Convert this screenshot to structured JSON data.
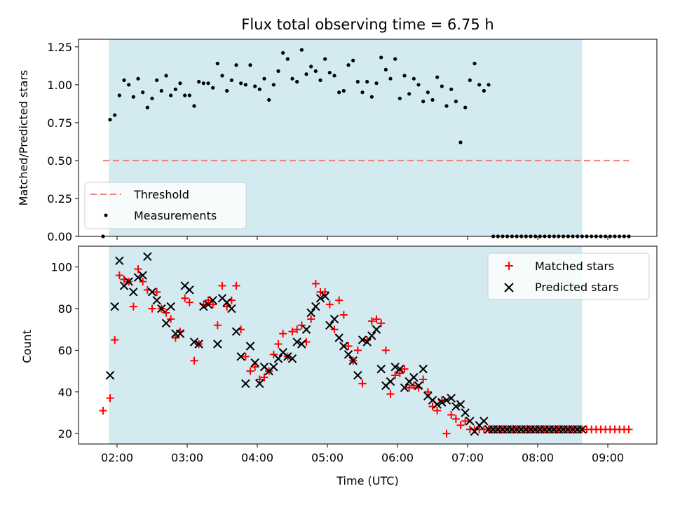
{
  "chart_data": [
    {
      "type": "scatter",
      "title": "Flux total observing time = 6.75 h",
      "xlabel": "",
      "ylabel": "Matched/Predicted stars",
      "xlim": [
        "01:27",
        "09:42"
      ],
      "ylim": [
        0,
        1.3
      ],
      "yticks": [
        "0.00",
        "0.25",
        "0.50",
        "0.75",
        "1.00",
        "1.25"
      ],
      "grid": false,
      "legend_position": "lower-left",
      "shaded_interval": {
        "start": "01:53",
        "end": "08:38",
        "color": "#d3eaf0"
      },
      "threshold": {
        "name": "Threshold",
        "value": 0.5,
        "x_start": "01:48",
        "x_end": "09:18",
        "color": "#f08080"
      },
      "series": [
        {
          "name": "Measurements",
          "marker": "dot",
          "color": "#000000",
          "x": [
            "01:48",
            "01:54",
            "01:58",
            "02:02",
            "02:06",
            "02:10",
            "02:14",
            "02:18",
            "02:22",
            "02:26",
            "02:30",
            "02:34",
            "02:38",
            "02:42",
            "02:46",
            "02:50",
            "02:54",
            "02:58",
            "03:02",
            "03:06",
            "03:10",
            "03:14",
            "03:18",
            "03:22",
            "03:26",
            "03:30",
            "03:34",
            "03:38",
            "03:42",
            "03:46",
            "03:50",
            "03:54",
            "03:58",
            "04:02",
            "04:06",
            "04:10",
            "04:14",
            "04:18",
            "04:22",
            "04:26",
            "04:30",
            "04:34",
            "04:38",
            "04:42",
            "04:46",
            "04:50",
            "04:54",
            "04:58",
            "05:02",
            "05:06",
            "05:10",
            "05:14",
            "05:18",
            "05:22",
            "05:26",
            "05:30",
            "05:34",
            "05:38",
            "05:42",
            "05:46",
            "05:50",
            "05:54",
            "05:58",
            "06:02",
            "06:06",
            "06:10",
            "06:14",
            "06:18",
            "06:22",
            "06:26",
            "06:30",
            "06:34",
            "06:38",
            "06:42",
            "06:46",
            "06:50",
            "06:54",
            "06:58",
            "07:02",
            "07:06",
            "07:10",
            "07:14",
            "07:18",
            "07:22",
            "07:26",
            "07:30",
            "07:34",
            "07:38",
            "07:42",
            "07:46",
            "07:50",
            "07:54",
            "07:58",
            "08:02",
            "08:06",
            "08:10",
            "08:14",
            "08:18",
            "08:22",
            "08:26",
            "08:30",
            "08:34",
            "08:38",
            "08:42",
            "08:46",
            "08:50",
            "08:54",
            "08:58",
            "09:02",
            "09:06",
            "09:10",
            "09:14",
            "09:18"
          ],
          "y": [
            0.0,
            0.77,
            0.8,
            0.93,
            1.03,
            1.0,
            0.92,
            1.04,
            0.95,
            0.85,
            0.91,
            1.03,
            0.96,
            1.06,
            0.93,
            0.97,
            1.01,
            0.93,
            0.93,
            0.86,
            1.02,
            1.01,
            1.01,
            0.98,
            1.14,
            1.06,
            0.96,
            1.03,
            1.13,
            1.01,
            1.0,
            1.13,
            0.99,
            0.97,
            1.04,
            0.9,
            1.0,
            1.09,
            1.21,
            1.17,
            1.04,
            1.02,
            1.23,
            1.07,
            1.12,
            1.09,
            1.03,
            1.17,
            1.08,
            1.06,
            0.95,
            0.96,
            1.13,
            1.16,
            1.02,
            0.95,
            1.02,
            0.92,
            1.01,
            1.18,
            1.1,
            1.04,
            1.17,
            0.91,
            1.06,
            0.94,
            1.04,
            1.0,
            0.89,
            0.95,
            0.9,
            1.05,
            0.99,
            0.86,
            0.97,
            0.89,
            0.62,
            0.85,
            1.03,
            1.14,
            1.0,
            0.96,
            1.0,
            0.0,
            0.0,
            0.0,
            0.0,
            0.0,
            0.0,
            0.0,
            0.0,
            0.0,
            0.0,
            0.0,
            0.0,
            0.0,
            0.0,
            0.0,
            0.0,
            0.0,
            0.0,
            0.0,
            0.0,
            0.0,
            0.0,
            0.0,
            0.0,
            0.0,
            0.0,
            0.0,
            0.0,
            0.0,
            0.0
          ]
        }
      ]
    },
    {
      "type": "scatter",
      "title": "",
      "xlabel": "Time (UTC)",
      "ylabel": "Count",
      "xlim": [
        "01:27",
        "09:42"
      ],
      "ylim": [
        15,
        110
      ],
      "yticks": [
        "20",
        "40",
        "60",
        "80",
        "100"
      ],
      "xticks": [
        "02:00",
        "03:00",
        "04:00",
        "05:00",
        "06:00",
        "07:00",
        "08:00",
        "09:00"
      ],
      "grid": false,
      "legend_position": "top-right",
      "shaded_interval": {
        "start": "01:53",
        "end": "08:38",
        "color": "#d3eaf0"
      },
      "series": [
        {
          "name": "Matched stars",
          "marker": "plus",
          "color": "#ff0000",
          "x": [
            "01:48",
            "01:54",
            "01:58",
            "02:02",
            "02:06",
            "02:10",
            "02:14",
            "02:18",
            "02:22",
            "02:26",
            "02:30",
            "02:34",
            "02:38",
            "02:42",
            "02:46",
            "02:50",
            "02:54",
            "02:58",
            "03:02",
            "03:06",
            "03:10",
            "03:14",
            "03:18",
            "03:22",
            "03:26",
            "03:30",
            "03:34",
            "03:38",
            "03:42",
            "03:46",
            "03:50",
            "03:54",
            "03:58",
            "04:02",
            "04:06",
            "04:10",
            "04:14",
            "04:18",
            "04:22",
            "04:26",
            "04:30",
            "04:34",
            "04:38",
            "04:42",
            "04:46",
            "04:50",
            "04:54",
            "04:58",
            "05:02",
            "05:06",
            "05:10",
            "05:14",
            "05:18",
            "05:22",
            "05:26",
            "05:30",
            "05:34",
            "05:38",
            "05:42",
            "05:46",
            "05:50",
            "05:54",
            "05:58",
            "06:02",
            "06:06",
            "06:10",
            "06:14",
            "06:18",
            "06:22",
            "06:26",
            "06:30",
            "06:34",
            "06:38",
            "06:42",
            "06:46",
            "06:50",
            "06:54",
            "06:58",
            "07:02",
            "07:06",
            "07:10",
            "07:14",
            "07:18",
            "07:22",
            "07:26",
            "07:30",
            "07:34",
            "07:38",
            "07:42",
            "07:46",
            "07:50",
            "07:54",
            "07:58",
            "08:02",
            "08:06",
            "08:10",
            "08:14",
            "08:18",
            "08:22",
            "08:26",
            "08:30",
            "08:34",
            "08:38",
            "08:42",
            "08:46",
            "08:50",
            "08:54",
            "08:58",
            "09:02",
            "09:06",
            "09:10",
            "09:14",
            "09:18"
          ],
          "y": [
            31,
            37,
            65,
            96,
            94,
            93,
            81,
            99,
            93,
            89,
            80,
            88,
            80,
            78,
            75,
            66,
            69,
            85,
            83,
            55,
            63,
            82,
            84,
            82,
            72,
            91,
            81,
            84,
            91,
            70,
            57,
            50,
            52,
            46,
            47,
            50,
            58,
            63,
            68,
            57,
            69,
            70,
            72,
            64,
            75,
            92,
            88,
            88,
            82,
            70,
            84,
            77,
            62,
            55,
            60,
            44,
            65,
            74,
            75,
            73,
            60,
            39,
            48,
            49,
            51,
            42,
            43,
            42,
            46,
            40,
            33,
            31,
            36,
            20,
            29,
            27,
            24,
            26,
            22,
            22,
            22,
            22,
            22,
            22,
            22,
            22,
            22,
            22,
            22,
            22,
            22,
            22,
            22,
            22,
            22,
            22,
            22,
            22,
            22,
            22,
            22,
            22,
            22,
            22,
            22,
            22,
            22,
            22,
            22,
            22,
            22,
            22,
            22
          ]
        },
        {
          "name": "Predicted stars",
          "marker": "x",
          "color": "#000000",
          "x": [
            "01:54",
            "01:58",
            "02:02",
            "02:06",
            "02:10",
            "02:14",
            "02:18",
            "02:22",
            "02:26",
            "02:30",
            "02:34",
            "02:38",
            "02:42",
            "02:46",
            "02:50",
            "02:54",
            "02:58",
            "03:02",
            "03:06",
            "03:10",
            "03:14",
            "03:18",
            "03:22",
            "03:26",
            "03:30",
            "03:34",
            "03:38",
            "03:42",
            "03:46",
            "03:50",
            "03:54",
            "03:58",
            "04:02",
            "04:06",
            "04:10",
            "04:14",
            "04:18",
            "04:22",
            "04:26",
            "04:30",
            "04:34",
            "04:38",
            "04:42",
            "04:46",
            "04:50",
            "04:54",
            "04:58",
            "05:02",
            "05:06",
            "05:10",
            "05:14",
            "05:18",
            "05:22",
            "05:26",
            "05:30",
            "05:34",
            "05:38",
            "05:42",
            "05:46",
            "05:50",
            "05:54",
            "05:58",
            "06:02",
            "06:06",
            "06:10",
            "06:14",
            "06:18",
            "06:22",
            "06:26",
            "06:30",
            "06:34",
            "06:38",
            "06:42",
            "06:46",
            "06:50",
            "06:54",
            "06:58",
            "07:02",
            "07:06",
            "07:10",
            "07:14",
            "07:18",
            "07:22",
            "07:26",
            "07:30",
            "07:34",
            "07:38",
            "07:42",
            "07:46",
            "07:50",
            "07:54",
            "07:58",
            "08:02",
            "08:06",
            "08:10",
            "08:14",
            "08:18",
            "08:22",
            "08:26",
            "08:30",
            "08:34",
            "08:38"
          ],
          "y": [
            48,
            81,
            103,
            91,
            93,
            88,
            95,
            96,
            105,
            88,
            84,
            80,
            73,
            81,
            68,
            68,
            91,
            89,
            64,
            63,
            81,
            82,
            84,
            63,
            85,
            83,
            80,
            69,
            57,
            44,
            62,
            54,
            44,
            52,
            50,
            52,
            56,
            59,
            57,
            56,
            64,
            63,
            70,
            78,
            81,
            85,
            86,
            72,
            75,
            66,
            62,
            58,
            55,
            48,
            65,
            64,
            67,
            70,
            51,
            43,
            45,
            52,
            51,
            42,
            45,
            47,
            43,
            51,
            38,
            36,
            34,
            35,
            36,
            37,
            33,
            34,
            30,
            26,
            21,
            24,
            26,
            22,
            22,
            22,
            22,
            22,
            22,
            22,
            22,
            22,
            22,
            22,
            22,
            22,
            22,
            22,
            22,
            22,
            22,
            22,
            22,
            22
          ]
        }
      ]
    }
  ]
}
